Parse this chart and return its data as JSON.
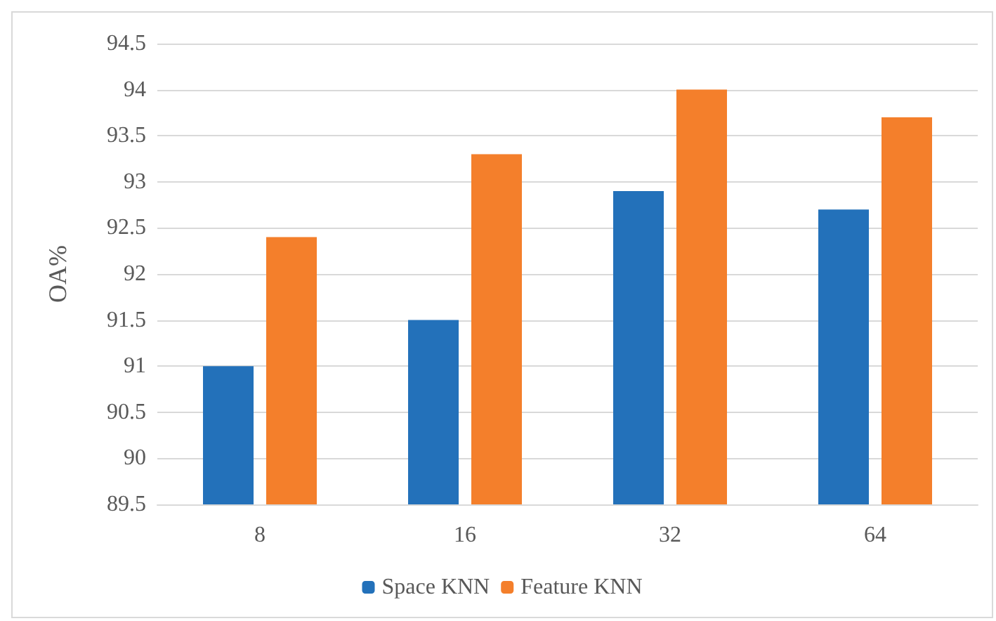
{
  "chart_data": {
    "type": "bar",
    "ylabel": "OA%",
    "categories": [
      "8",
      "16",
      "32",
      "64"
    ],
    "series": [
      {
        "name": "Space KNN",
        "color": "#2371ba",
        "values": [
          91,
          91.5,
          92.9,
          92.7
        ]
      },
      {
        "name": "Feature KNN",
        "color": "#f47f2b",
        "values": [
          92.4,
          93.3,
          94,
          93.7
        ]
      }
    ],
    "ylim": [
      89.5,
      94.5
    ],
    "yticks": [
      89.5,
      90,
      90.5,
      91,
      91.5,
      92,
      92.5,
      93,
      93.5,
      94,
      94.5
    ],
    "grid": "y",
    "legend": "bottom"
  }
}
